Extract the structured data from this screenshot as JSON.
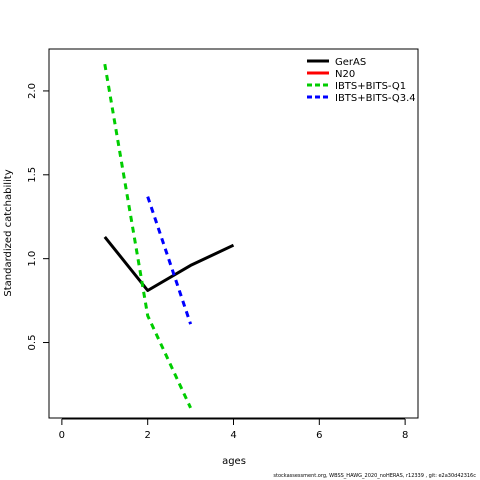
{
  "chart_data": {
    "type": "line",
    "title": "",
    "xlabel": "ages",
    "ylabel": "Standardized catchability",
    "xlim": [
      -0.3,
      8.3
    ],
    "ylim": [
      0.05,
      2.25
    ],
    "xticks": [
      0,
      2,
      4,
      6,
      8
    ],
    "yticks": [
      0.5,
      1.0,
      1.5,
      2.0
    ],
    "ytick_labels": [
      "0.5",
      "1.0",
      "1.5",
      "2.0"
    ],
    "grid": false,
    "legend_position": "top-right",
    "series": [
      {
        "name": "GerAS",
        "color": "#000000",
        "dash": "solid",
        "x": [
          1,
          2,
          3,
          4
        ],
        "y": [
          1.13,
          0.81,
          0.96,
          1.08
        ]
      },
      {
        "name": "N20",
        "color": "#ff0000",
        "dash": "solid",
        "x": [],
        "y": []
      },
      {
        "name": "IBTS+BITS-Q1",
        "color": "#00cd00",
        "dash": "dashed",
        "x": [
          1,
          2,
          3
        ],
        "y": [
          2.16,
          0.66,
          0.11
        ]
      },
      {
        "name": "IBTS+BITS-Q3.4",
        "color": "#0000ff",
        "dash": "dashed",
        "x": [
          2,
          3
        ],
        "y": [
          1.37,
          0.61
        ]
      }
    ]
  },
  "footer": {
    "text": "stockassessment.org, WBSS_HAWG_2020_noHERAS, r12339 , git: e2a30d42316c"
  }
}
